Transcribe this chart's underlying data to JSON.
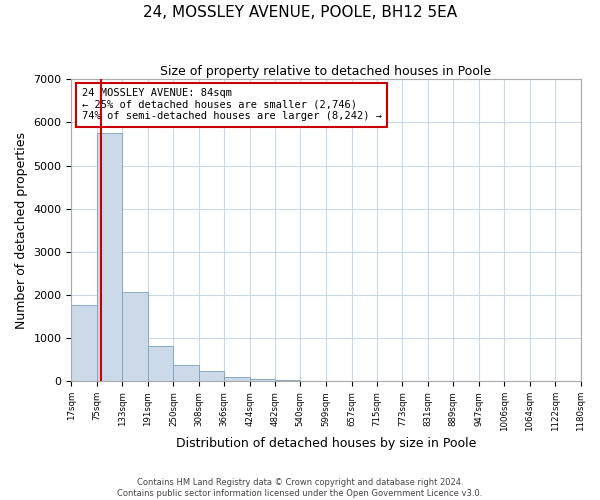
{
  "title": "24, MOSSLEY AVENUE, POOLE, BH12 5EA",
  "subtitle": "Size of property relative to detached houses in Poole",
  "xlabel": "Distribution of detached houses by size in Poole",
  "ylabel": "Number of detached properties",
  "bar_color": "#ccd9e8",
  "bar_edge_color": "#7aa0c0",
  "grid_color": "#c8d8e8",
  "vline_color": "#cc0000",
  "vline_x": 84,
  "annotation_text": "24 MOSSLEY AVENUE: 84sqm\n← 25% of detached houses are smaller (2,746)\n74% of semi-detached houses are larger (8,242) →",
  "annotation_box_color": "#ffffff",
  "annotation_box_edge": "#cc0000",
  "bins": [
    17,
    75,
    133,
    191,
    250,
    308,
    366,
    424,
    482,
    540,
    599,
    657,
    715,
    773,
    831,
    889,
    947,
    1006,
    1064,
    1122,
    1180
  ],
  "bar_heights": [
    1780,
    5760,
    2060,
    830,
    380,
    230,
    110,
    55,
    30,
    15,
    8,
    4,
    2,
    0,
    0,
    0,
    0,
    0,
    0,
    0
  ],
  "ylim": [
    0,
    7000
  ],
  "yticks": [
    0,
    1000,
    2000,
    3000,
    4000,
    5000,
    6000,
    7000
  ],
  "tick_labels": [
    "17sqm",
    "75sqm",
    "133sqm",
    "191sqm",
    "250sqm",
    "308sqm",
    "366sqm",
    "424sqm",
    "482sqm",
    "540sqm",
    "599sqm",
    "657sqm",
    "715sqm",
    "773sqm",
    "831sqm",
    "889sqm",
    "947sqm",
    "1006sqm",
    "1064sqm",
    "1122sqm",
    "1180sqm"
  ],
  "footer_line1": "Contains HM Land Registry data © Crown copyright and database right 2024.",
  "footer_line2": "Contains public sector information licensed under the Open Government Licence v3.0."
}
